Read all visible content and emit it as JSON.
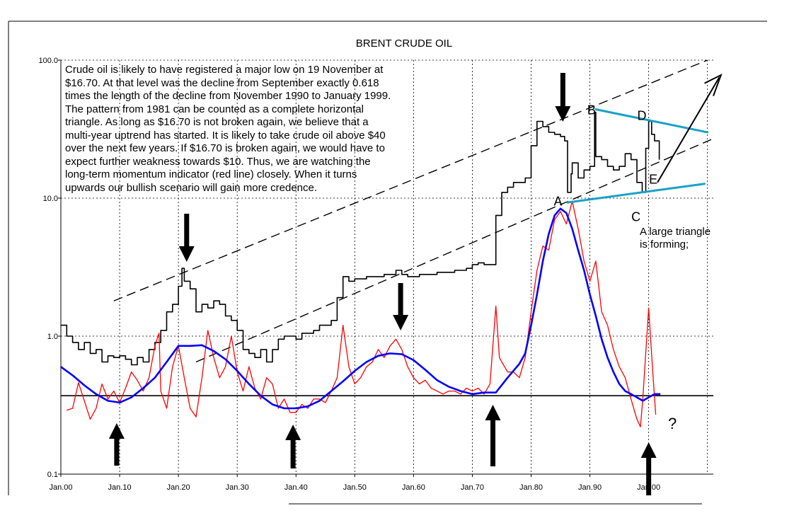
{
  "chart_data": {
    "type": "line",
    "title": "BRENT CRUDE OIL",
    "y_scale": "log",
    "ylim": [
      0.1,
      100
    ],
    "y_ticks": [
      "0.1",
      "1.0",
      "10.0",
      "100.0"
    ],
    "y_tick_values": [
      0.1,
      1,
      10,
      100
    ],
    "xlim": [
      1900,
      2011
    ],
    "x_ticks": [
      "Jan.00",
      "Jan.10",
      "Jan.20",
      "Jan.30",
      "Jan.40",
      "Jan.50",
      "Jan.60",
      "Jan.70",
      "Jan.80",
      "Jan.90",
      "Jan.00"
    ],
    "x_tick_values": [
      1900,
      1910,
      1920,
      1930,
      1940,
      1950,
      1960,
      1970,
      1980,
      1990,
      2000
    ],
    "grid": true,
    "commentary": [
      "Crude oil is likely to have registered a major low on 19 November at",
      "$16.70. At that level was the decline from September exactly 0.618",
      "times the length of the decline from November 1990 to January 1999.",
      "The pattern from 1981 can be counted as a complete horizontal",
      "triangle. As long as $16.70 is not broken again, we believe that a",
      "multi-year uptrend has started. It is likely to take crude oil above $40",
      "over the next few years. If $16.70 is broken again, we would have to",
      "expect further weakness towards $10. Thus, we are watching the",
      "long-term momentum indicator (red line) closely. When it turns",
      "upwards our bullish scenario will gain more credence."
    ],
    "triangle_labels": [
      {
        "label": "A",
        "x": 1985.3,
        "y": 9.6
      },
      {
        "label": "B",
        "x": 1991.0,
        "y": 44
      },
      {
        "label": "C",
        "x": 1998.5,
        "y": 7.4
      },
      {
        "label": "D",
        "x": 1999.5,
        "y": 40
      },
      {
        "label": "E",
        "x": 2001.5,
        "y": 13.8
      }
    ],
    "triangle_note": [
      "A large triangle",
      "is forming;"
    ],
    "question_mark": "?",
    "momentum_baseline": 0.37,
    "colors": {
      "price": "#000000",
      "momentum": "#ff0000",
      "smoothed": "#0000ff",
      "triangle": "#19a1c6",
      "annotation": "#000000"
    },
    "series": [
      {
        "key": "price",
        "points": [
          [
            1900,
            1.2
          ],
          [
            1901,
            1.0
          ],
          [
            1902,
            0.9
          ],
          [
            1903,
            0.8
          ],
          [
            1904,
            0.9
          ],
          [
            1905,
            0.75
          ],
          [
            1906,
            0.8
          ],
          [
            1907,
            0.65
          ],
          [
            1908,
            0.72
          ],
          [
            1909,
            0.7
          ],
          [
            1910,
            0.72
          ],
          [
            1911,
            0.68
          ],
          [
            1912,
            0.62
          ],
          [
            1913,
            0.7
          ],
          [
            1914,
            0.65
          ],
          [
            1915,
            0.8
          ],
          [
            1916,
            0.9
          ],
          [
            1917,
            1.1
          ],
          [
            1918,
            1.5
          ],
          [
            1919,
            1.7
          ],
          [
            1920,
            2.3
          ],
          [
            1920.6,
            3.1
          ],
          [
            1921,
            2.5
          ],
          [
            1922,
            2.2
          ],
          [
            1923,
            1.5
          ],
          [
            1924,
            1.7
          ],
          [
            1925,
            1.6
          ],
          [
            1926,
            1.8
          ],
          [
            1927,
            1.7
          ],
          [
            1928,
            1.4
          ],
          [
            1929,
            1.3
          ],
          [
            1930,
            1.1
          ],
          [
            1931,
            0.8
          ],
          [
            1932,
            0.75
          ],
          [
            1933,
            0.7
          ],
          [
            1934,
            0.8
          ],
          [
            1935,
            0.65
          ],
          [
            1936,
            0.8
          ],
          [
            1937,
            0.95
          ],
          [
            1938,
            1.0
          ],
          [
            1939,
            1.0
          ],
          [
            1940,
            0.95
          ],
          [
            1941,
            1.05
          ],
          [
            1942,
            1.05
          ],
          [
            1943,
            1.1
          ],
          [
            1944,
            1.2
          ],
          [
            1945,
            1.2
          ],
          [
            1946,
            1.3
          ],
          [
            1947,
            1.9
          ],
          [
            1948,
            2.7
          ],
          [
            1949,
            2.5
          ],
          [
            1950,
            2.6
          ],
          [
            1951,
            2.6
          ],
          [
            1952,
            2.7
          ],
          [
            1953,
            2.7
          ],
          [
            1954,
            2.7
          ],
          [
            1955,
            2.8
          ],
          [
            1956,
            2.8
          ],
          [
            1957,
            3.0
          ],
          [
            1958,
            2.8
          ],
          [
            1959,
            2.7
          ],
          [
            1960,
            2.7
          ],
          [
            1961,
            2.8
          ],
          [
            1962,
            2.8
          ],
          [
            1963,
            2.8
          ],
          [
            1964,
            2.9
          ],
          [
            1965,
            2.9
          ],
          [
            1966,
            2.9
          ],
          [
            1967,
            3.0
          ],
          [
            1968,
            3.0
          ],
          [
            1969,
            3.1
          ],
          [
            1970,
            3.3
          ],
          [
            1971,
            3.4
          ],
          [
            1972,
            3.3
          ],
          [
            1973,
            3.3
          ],
          [
            1974,
            7.5
          ],
          [
            1975,
            11
          ],
          [
            1976,
            12
          ],
          [
            1977,
            13
          ],
          [
            1978,
            13
          ],
          [
            1979,
            14
          ],
          [
            1980,
            24
          ],
          [
            1981,
            36
          ],
          [
            1982,
            33
          ],
          [
            1983,
            30
          ],
          [
            1984,
            29
          ],
          [
            1985,
            28
          ],
          [
            1985.7,
            26
          ],
          [
            1986.2,
            11
          ],
          [
            1986.8,
            15
          ],
          [
            1987,
            18
          ],
          [
            1988,
            14
          ],
          [
            1989,
            16
          ],
          [
            1990,
            17
          ],
          [
            1990.8,
            42
          ],
          [
            1991,
            20
          ],
          [
            1992,
            19
          ],
          [
            1993,
            17
          ],
          [
            1994,
            16
          ],
          [
            1995,
            17
          ],
          [
            1996,
            21
          ],
          [
            1997,
            19
          ],
          [
            1998,
            13
          ],
          [
            1998.9,
            11
          ],
          [
            1999.5,
            23
          ],
          [
            2000,
            36
          ],
          [
            2000.5,
            29
          ],
          [
            2001,
            26
          ],
          [
            2001.8,
            19
          ]
        ]
      },
      {
        "key": "momentum",
        "points": [
          [
            1901,
            0.29
          ],
          [
            1902,
            0.3
          ],
          [
            1903,
            0.46
          ],
          [
            1904,
            0.34
          ],
          [
            1905,
            0.25
          ],
          [
            1906,
            0.3
          ],
          [
            1907,
            0.45
          ],
          [
            1908,
            0.35
          ],
          [
            1909,
            0.4
          ],
          [
            1910,
            0.33
          ],
          [
            1911,
            0.42
          ],
          [
            1912,
            0.55
          ],
          [
            1913,
            0.48
          ],
          [
            1914,
            0.4
          ],
          [
            1915,
            0.5
          ],
          [
            1916,
            0.85
          ],
          [
            1916.7,
            1.05
          ],
          [
            1917,
            0.4
          ],
          [
            1918,
            0.3
          ],
          [
            1919,
            0.6
          ],
          [
            1920,
            0.85
          ],
          [
            1921,
            0.5
          ],
          [
            1922,
            0.3
          ],
          [
            1923,
            0.26
          ],
          [
            1924,
            0.5
          ],
          [
            1925,
            1.1
          ],
          [
            1926,
            0.7
          ],
          [
            1927,
            0.5
          ],
          [
            1928,
            0.6
          ],
          [
            1929,
            1.0
          ],
          [
            1930,
            0.55
          ],
          [
            1931,
            0.4
          ],
          [
            1932,
            0.6
          ],
          [
            1933,
            0.42
          ],
          [
            1934,
            0.35
          ],
          [
            1935,
            0.5
          ],
          [
            1936,
            0.45
          ],
          [
            1937,
            0.3
          ],
          [
            1938,
            0.35
          ],
          [
            1939,
            0.28
          ],
          [
            1940,
            0.28
          ],
          [
            1941,
            0.32
          ],
          [
            1942,
            0.3
          ],
          [
            1943,
            0.35
          ],
          [
            1944,
            0.35
          ],
          [
            1945,
            0.33
          ],
          [
            1946,
            0.4
          ],
          [
            1947,
            0.5
          ],
          [
            1948,
            1.2
          ],
          [
            1949,
            0.6
          ],
          [
            1950,
            0.45
          ],
          [
            1951,
            0.5
          ],
          [
            1952,
            0.6
          ],
          [
            1953,
            0.65
          ],
          [
            1954,
            0.8
          ],
          [
            1955,
            0.7
          ],
          [
            1956,
            0.85
          ],
          [
            1957,
            0.95
          ],
          [
            1958,
            0.8
          ],
          [
            1959,
            0.6
          ],
          [
            1960,
            0.5
          ],
          [
            1961,
            0.45
          ],
          [
            1962,
            0.48
          ],
          [
            1963,
            0.42
          ],
          [
            1964,
            0.4
          ],
          [
            1965,
            0.38
          ],
          [
            1966,
            0.4
          ],
          [
            1967,
            0.4
          ],
          [
            1968,
            0.38
          ],
          [
            1969,
            0.42
          ],
          [
            1970,
            0.4
          ],
          [
            1971,
            0.42
          ],
          [
            1972,
            0.38
          ],
          [
            1973,
            0.45
          ],
          [
            1974,
            1.65
          ],
          [
            1974.6,
            0.7
          ],
          [
            1975,
            0.65
          ],
          [
            1976,
            0.55
          ],
          [
            1977,
            0.55
          ],
          [
            1978,
            0.5
          ],
          [
            1979,
            0.7
          ],
          [
            1980,
            1.5
          ],
          [
            1981,
            3.0
          ],
          [
            1982,
            4.5
          ],
          [
            1983,
            4.2
          ],
          [
            1984,
            7.0
          ],
          [
            1985,
            8.0
          ],
          [
            1986,
            6.5
          ],
          [
            1987,
            9.5
          ],
          [
            1988,
            6.0
          ],
          [
            1989,
            3.5
          ],
          [
            1990,
            2.5
          ],
          [
            1991,
            3.5
          ],
          [
            1992,
            1.5
          ],
          [
            1993,
            1.2
          ],
          [
            1994,
            0.8
          ],
          [
            1995,
            0.6
          ],
          [
            1996,
            0.5
          ],
          [
            1997,
            0.35
          ],
          [
            1998,
            0.25
          ],
          [
            1998.6,
            0.22
          ],
          [
            1999,
            0.35
          ],
          [
            2000,
            1.6
          ],
          [
            2000.7,
            0.55
          ],
          [
            2001.2,
            0.27
          ]
        ]
      },
      {
        "key": "smoothed",
        "points": [
          [
            1900,
            0.6
          ],
          [
            1902,
            0.52
          ],
          [
            1904,
            0.44
          ],
          [
            1906,
            0.38
          ],
          [
            1908,
            0.34
          ],
          [
            1910,
            0.33
          ],
          [
            1912,
            0.36
          ],
          [
            1914,
            0.42
          ],
          [
            1916,
            0.5
          ],
          [
            1918,
            0.65
          ],
          [
            1920,
            0.85
          ],
          [
            1922,
            0.85
          ],
          [
            1924,
            0.86
          ],
          [
            1926,
            0.78
          ],
          [
            1928,
            0.68
          ],
          [
            1930,
            0.56
          ],
          [
            1932,
            0.45
          ],
          [
            1934,
            0.37
          ],
          [
            1936,
            0.32
          ],
          [
            1938,
            0.3
          ],
          [
            1940,
            0.3
          ],
          [
            1942,
            0.31
          ],
          [
            1944,
            0.34
          ],
          [
            1946,
            0.4
          ],
          [
            1948,
            0.47
          ],
          [
            1950,
            0.56
          ],
          [
            1952,
            0.65
          ],
          [
            1954,
            0.72
          ],
          [
            1956,
            0.75
          ],
          [
            1958,
            0.74
          ],
          [
            1960,
            0.67
          ],
          [
            1962,
            0.57
          ],
          [
            1964,
            0.48
          ],
          [
            1966,
            0.43
          ],
          [
            1968,
            0.4
          ],
          [
            1970,
            0.38
          ],
          [
            1972,
            0.39
          ],
          [
            1974,
            0.39
          ],
          [
            1976,
            0.5
          ],
          [
            1978,
            0.63
          ],
          [
            1979,
            0.75
          ],
          [
            1980,
            1.2
          ],
          [
            1981,
            2.0
          ],
          [
            1982,
            3.5
          ],
          [
            1983,
            5.5
          ],
          [
            1984,
            7.5
          ],
          [
            1985,
            8.4
          ],
          [
            1986,
            7.8
          ],
          [
            1987,
            6.0
          ],
          [
            1988,
            4.2
          ],
          [
            1989,
            3.0
          ],
          [
            1990,
            2.0
          ],
          [
            1991,
            1.4
          ],
          [
            1992,
            0.95
          ],
          [
            1993,
            0.7
          ],
          [
            1994,
            0.55
          ],
          [
            1995,
            0.45
          ],
          [
            1996,
            0.4
          ],
          [
            1997,
            0.38
          ],
          [
            1998,
            0.36
          ],
          [
            1999,
            0.34
          ],
          [
            2000,
            0.36
          ],
          [
            2001,
            0.38
          ],
          [
            2002,
            0.38
          ]
        ]
      }
    ]
  }
}
